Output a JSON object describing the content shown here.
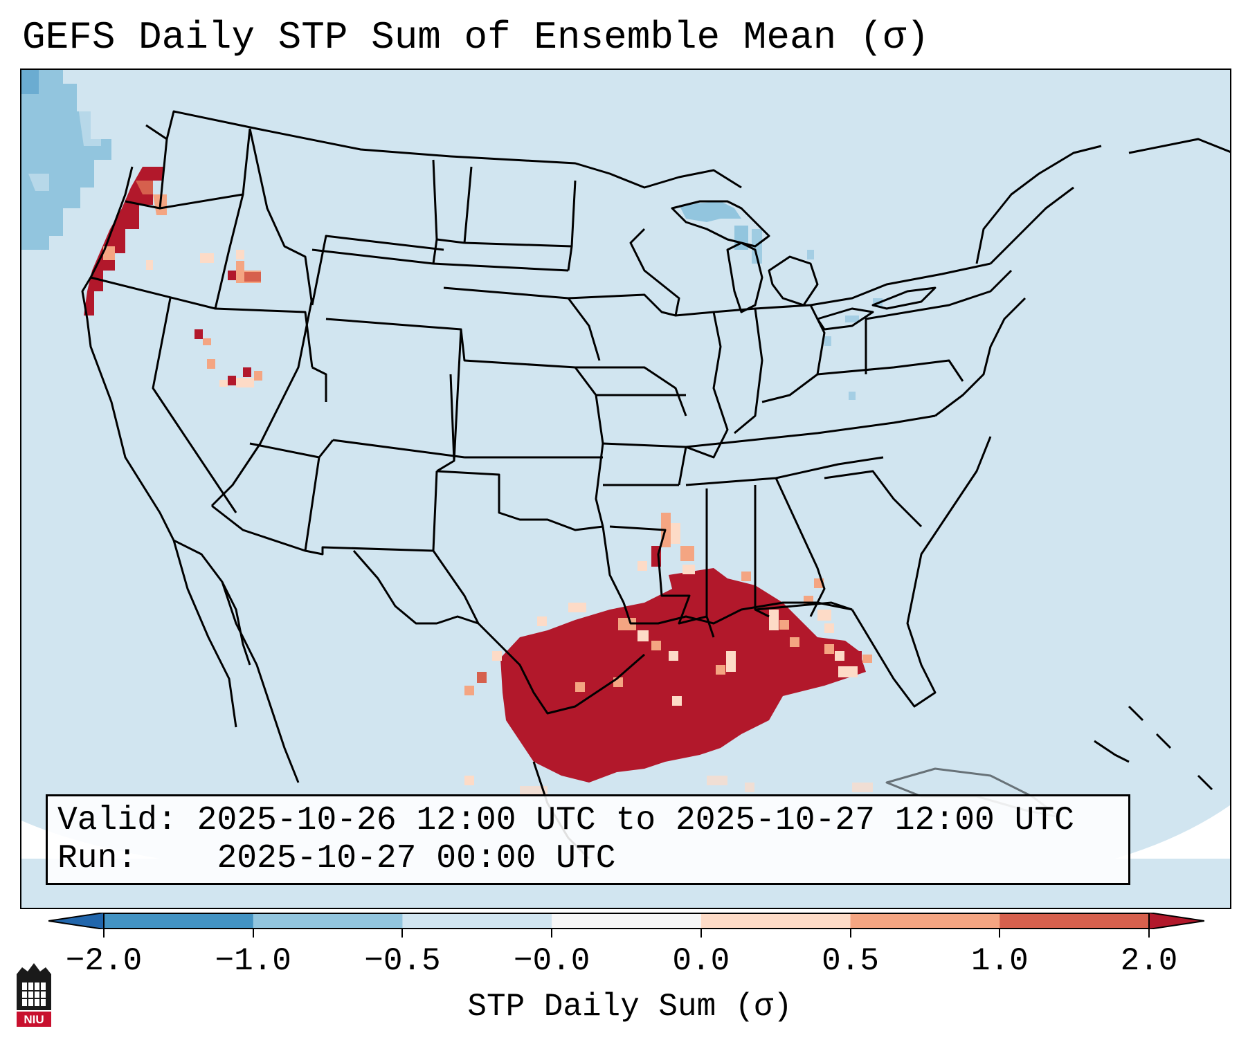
{
  "title": "GEFS Daily STP Sum of Ensemble Mean (σ)",
  "info": {
    "valid_label": "Valid:",
    "valid_value": "2025-10-26 12:00 UTC to 2025-10-27 12:00 UTC",
    "run_label": "Run:",
    "run_value": "2025-10-27 00:00 UTC"
  },
  "colorbar": {
    "label": "STP Daily Sum (σ)",
    "ticks": [
      "−2.0",
      "−1.0",
      "−0.5",
      "−0.0",
      "0.0",
      "0.5",
      "1.0",
      "2.0"
    ],
    "bins": [
      {
        "range": "-2.0 to -1.0",
        "color": "#4393c3"
      },
      {
        "range": "-1.0 to -0.5",
        "color": "#92c5de"
      },
      {
        "range": "-0.5 to -0.0",
        "color": "#d1e5f0"
      },
      {
        "range": "-0.0 to 0.0",
        "color": "#f7f7f7"
      },
      {
        "range": "0.0 to 0.5",
        "color": "#fddbc7"
      },
      {
        "range": "0.5 to 1.0",
        "color": "#f4a582"
      },
      {
        "range": "1.0 to 2.0",
        "color": "#d6604d"
      }
    ],
    "under_color": "#2166ac",
    "over_color": "#b2182b"
  },
  "map": {
    "projection": "Lambert Conformal, CONUS",
    "background_color": "#d1e5f0",
    "anomaly_regions": [
      {
        "name": "pacific-northwest-coast",
        "value_sigma": 1.8
      },
      {
        "name": "gulf-coast-texas-louisiana",
        "value_sigma": 2.0
      },
      {
        "name": "florida-panhandle",
        "value_sigma": 1.2
      },
      {
        "name": "northern-nevada-utah",
        "value_sigma": 0.8
      },
      {
        "name": "lake-superior-michigan",
        "value_sigma": -0.7
      },
      {
        "name": "pacific-offshore",
        "value_sigma": -0.8
      }
    ]
  },
  "logo": {
    "text": "NIU",
    "icon": "university-logo-icon"
  }
}
